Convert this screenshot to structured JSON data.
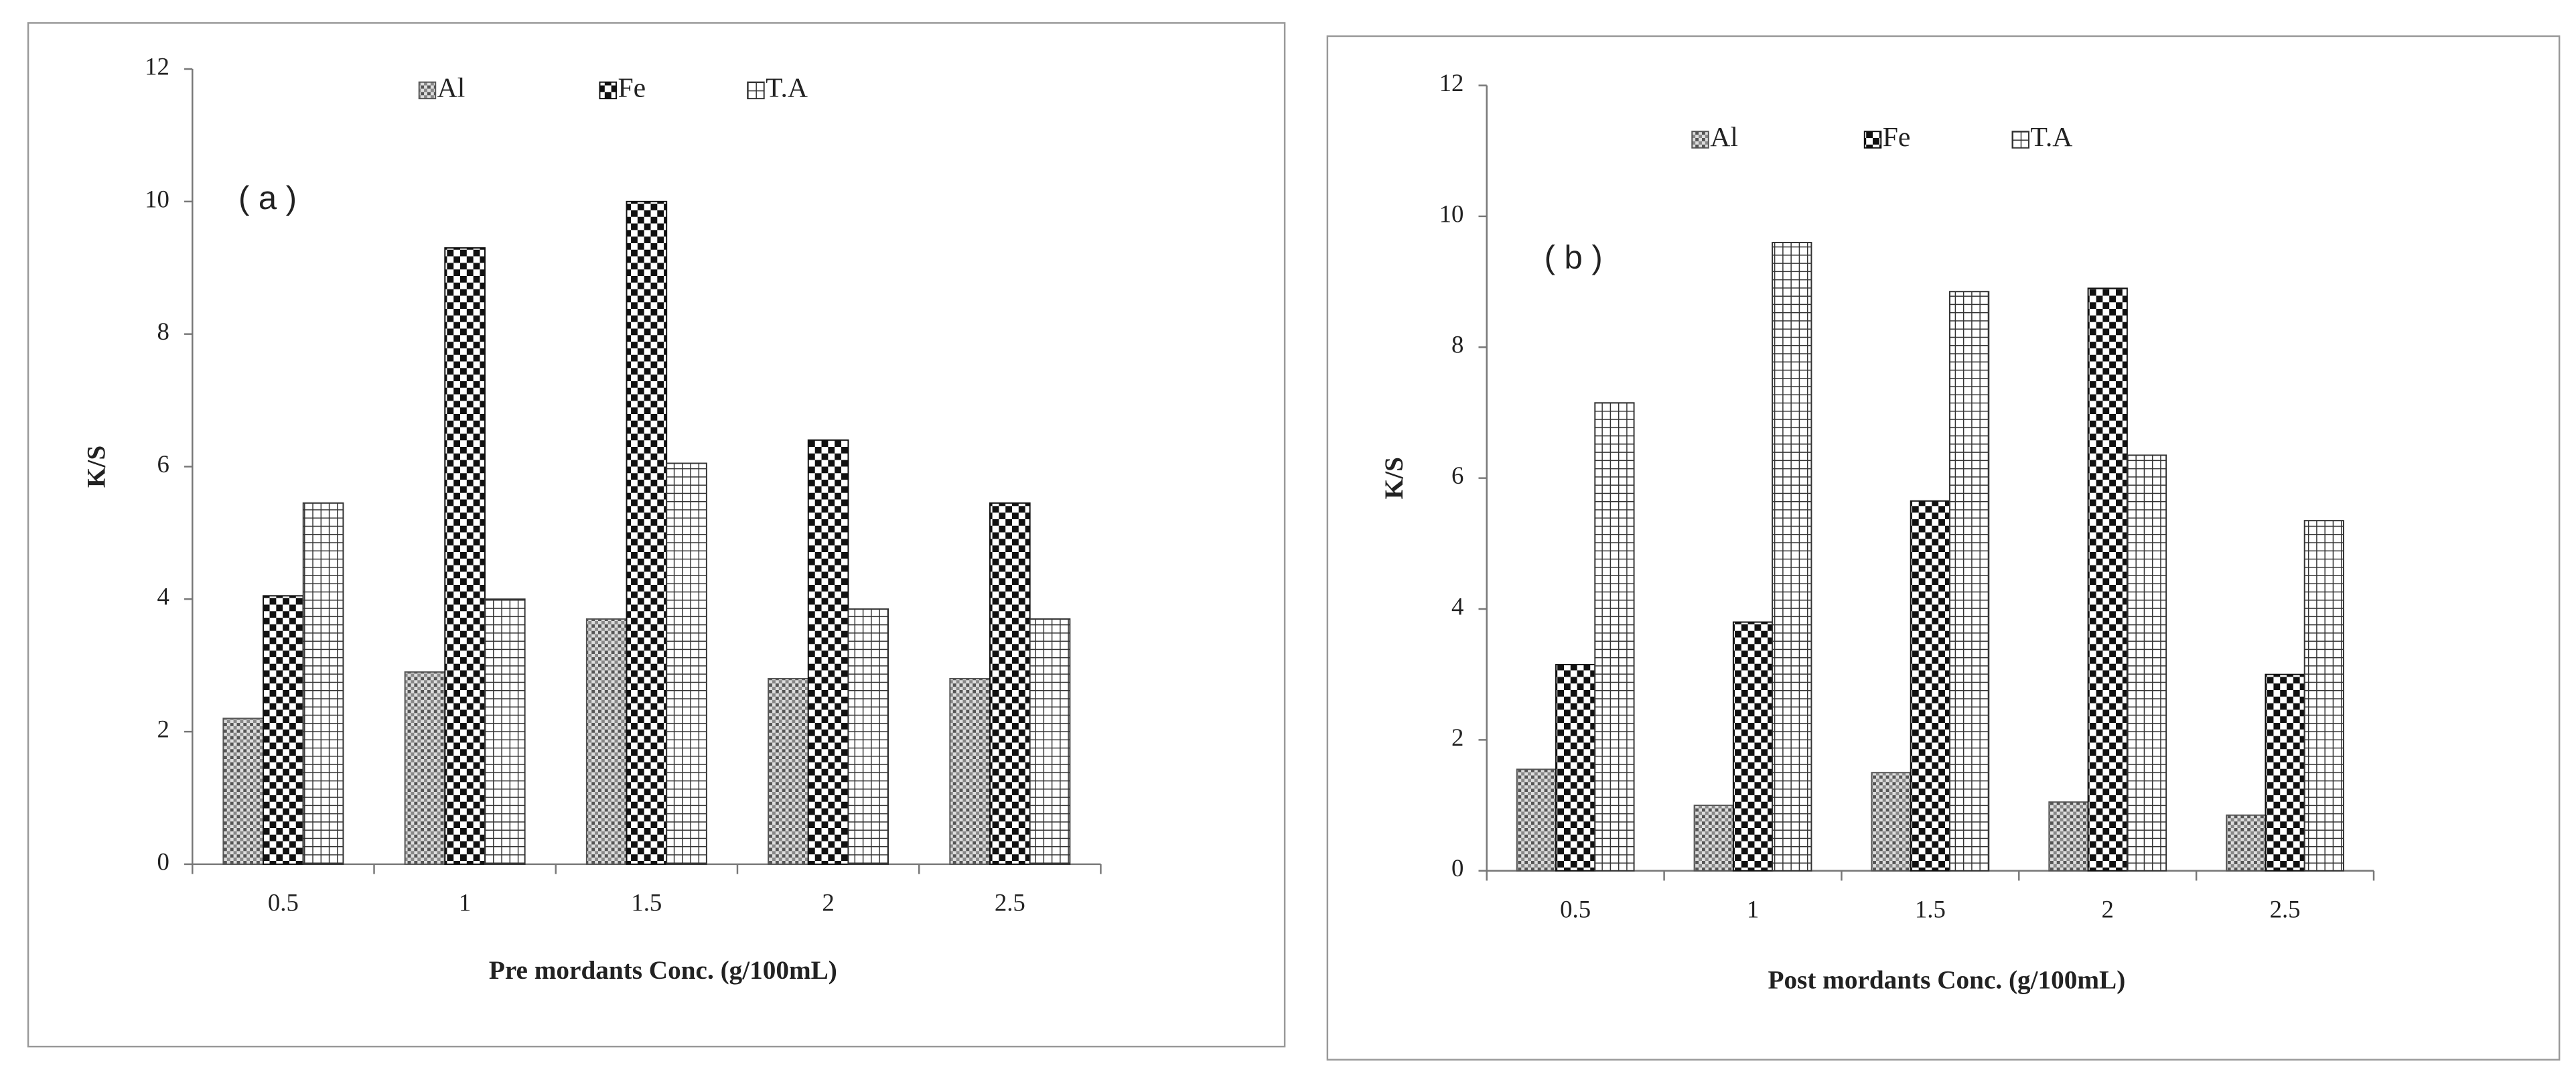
{
  "chart_data": [
    {
      "type": "bar",
      "annotation": "( a )",
      "xlabel": "Pre mordants  Conc.  (g/100mL)",
      "ylabel": "K/S",
      "categories": [
        "0.5",
        "1",
        "1.5",
        "2",
        "2.5"
      ],
      "series": [
        {
          "name": "Al",
          "color": "#555",
          "values": [
            2.2,
            2.9,
            3.7,
            2.8,
            2.8
          ]
        },
        {
          "name": "Fe",
          "color": "#111",
          "values": [
            4.05,
            9.3,
            10.0,
            6.4,
            5.45
          ]
        },
        {
          "name": "T.A",
          "color": "#333",
          "values": [
            5.45,
            4.0,
            6.05,
            3.85,
            3.7
          ]
        }
      ],
      "ylim": [
        0,
        12
      ],
      "yticks": [
        0,
        2,
        4,
        6,
        8,
        10,
        12
      ]
    },
    {
      "type": "bar",
      "annotation": "( b )",
      "xlabel": "Post mordants  Conc.  (g/100mL)",
      "ylabel": "K/S",
      "categories": [
        "0.5",
        "1",
        "1.5",
        "2",
        "2.5"
      ],
      "series": [
        {
          "name": "Al",
          "color": "#555",
          "values": [
            1.55,
            1.0,
            1.5,
            1.05,
            0.85
          ]
        },
        {
          "name": "Fe",
          "color": "#111",
          "values": [
            3.15,
            3.8,
            5.65,
            8.9,
            3.0
          ]
        },
        {
          "name": "T.A",
          "color": "#333",
          "values": [
            7.15,
            9.6,
            8.85,
            6.35,
            5.35
          ]
        }
      ],
      "ylim": [
        0,
        12
      ],
      "yticks": [
        0,
        2,
        4,
        6,
        8,
        10,
        12
      ]
    }
  ]
}
